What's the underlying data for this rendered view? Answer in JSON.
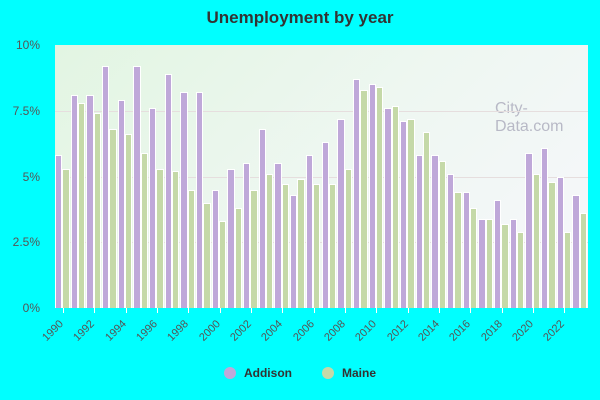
{
  "chart_data": {
    "type": "bar",
    "title": "Unemployment by year",
    "xlabel": "",
    "ylabel": "",
    "ylim": [
      0,
      10
    ],
    "yticks": [
      "0%",
      "2.5%",
      "5%",
      "7.5%",
      "10%"
    ],
    "xtick_labels": [
      "1990",
      "1992",
      "1994",
      "1996",
      "1998",
      "2000",
      "2002",
      "2004",
      "2006",
      "2008",
      "2010",
      "2012",
      "2014",
      "2016",
      "2018",
      "2020",
      "2022"
    ],
    "categories": [
      "1990",
      "1991",
      "1992",
      "1993",
      "1994",
      "1995",
      "1996",
      "1997",
      "1998",
      "1999",
      "2000",
      "2001",
      "2002",
      "2003",
      "2004",
      "2005",
      "2006",
      "2007",
      "2008",
      "2009",
      "2010",
      "2011",
      "2012",
      "2013",
      "2014",
      "2015",
      "2016",
      "2017",
      "2018",
      "2019",
      "2020",
      "2021",
      "2022",
      "2023"
    ],
    "series": [
      {
        "name": "Addison",
        "color": "#bfa8d9",
        "values": [
          5.8,
          8.1,
          8.1,
          9.2,
          7.9,
          9.2,
          7.6,
          8.9,
          8.2,
          8.2,
          4.5,
          5.3,
          5.5,
          6.8,
          5.5,
          4.3,
          5.8,
          6.3,
          7.2,
          8.7,
          8.5,
          7.6,
          7.1,
          5.8,
          5.8,
          5.1,
          4.4,
          3.4,
          4.1,
          3.4,
          5.9,
          6.1,
          5.0,
          4.3
        ]
      },
      {
        "name": "Maine",
        "color": "#c5d9a8",
        "values": [
          5.3,
          7.8,
          7.4,
          6.8,
          6.6,
          5.9,
          5.3,
          5.2,
          4.5,
          4.0,
          3.3,
          3.8,
          4.5,
          5.1,
          4.7,
          4.9,
          4.7,
          4.7,
          5.3,
          8.3,
          8.4,
          7.7,
          7.2,
          6.7,
          5.6,
          4.4,
          3.8,
          3.4,
          3.2,
          2.9,
          5.1,
          4.8,
          2.9,
          3.6
        ]
      }
    ],
    "grid": true,
    "legend_position": "bottom"
  },
  "watermark": "City-Data.com"
}
